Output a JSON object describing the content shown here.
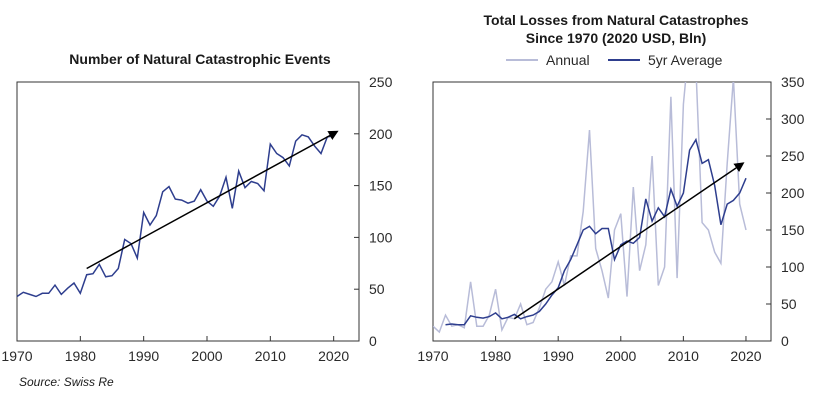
{
  "source": "Source: Swiss Re",
  "colors": {
    "avg": "#2e3e8e",
    "annual": "#b8bcd8",
    "trend": "#000000",
    "axis": "#333333"
  },
  "chart_data": [
    {
      "type": "line",
      "title": "Number of Natural Catastrophic Events",
      "xlim": [
        1970,
        2024
      ],
      "ylim": [
        0,
        250
      ],
      "xticks": [
        1970,
        1980,
        1990,
        2000,
        2010,
        2020
      ],
      "yticks": [
        0,
        50,
        100,
        150,
        200,
        250
      ],
      "series": [
        {
          "x": [
            1970,
            1971,
            1972,
            1973,
            1974,
            1975,
            1976,
            1977,
            1978,
            1979,
            1980,
            1981,
            1982,
            1983,
            1984,
            1985,
            1986,
            1987,
            1988,
            1989,
            1990,
            1991,
            1992,
            1993,
            1994,
            1995,
            1996,
            1997,
            1998,
            1999,
            2000,
            2001,
            2002,
            2003,
            2004,
            2005,
            2006,
            2007,
            2008,
            2009,
            2010,
            2011,
            2012,
            2013,
            2014,
            2015,
            2016,
            2017,
            2018,
            2019,
            2020
          ],
          "values": [
            43,
            47,
            45,
            43,
            46,
            46,
            54,
            45,
            51,
            56,
            46,
            64,
            65,
            74,
            62,
            63,
            70,
            98,
            94,
            80,
            124,
            112,
            121,
            144,
            149,
            137,
            136,
            133,
            135,
            146,
            135,
            130,
            140,
            158,
            128,
            164,
            148,
            154,
            152,
            145,
            190,
            181,
            177,
            169,
            193,
            199,
            197,
            188,
            181,
            197,
            198
          ]
        }
      ],
      "trend": {
        "x1": 1981,
        "y1": 70,
        "x2": 2020.5,
        "y2": 202
      }
    },
    {
      "type": "line",
      "title": [
        "Total Losses from Natural Catastrophes",
        "Since 1970 (2020 USD, Bln)"
      ],
      "xlim": [
        1970,
        2024
      ],
      "ylim": [
        0,
        350
      ],
      "xticks": [
        1970,
        1980,
        1990,
        2000,
        2010,
        2020
      ],
      "yticks": [
        0,
        50,
        100,
        150,
        200,
        250,
        300,
        350
      ],
      "series": [
        {
          "name": "Annual",
          "x": [
            1970,
            1971,
            1972,
            1973,
            1974,
            1975,
            1976,
            1977,
            1978,
            1979,
            1980,
            1981,
            1982,
            1983,
            1984,
            1985,
            1986,
            1987,
            1988,
            1989,
            1990,
            1991,
            1992,
            1993,
            1994,
            1995,
            1996,
            1997,
            1998,
            1999,
            2000,
            2001,
            2002,
            2003,
            2004,
            2005,
            2006,
            2007,
            2008,
            2009,
            2010,
            2011,
            2012,
            2013,
            2014,
            2015,
            2016,
            2017,
            2018,
            2019,
            2020
          ],
          "values": [
            20,
            12,
            35,
            20,
            22,
            18,
            80,
            20,
            20,
            35,
            70,
            15,
            32,
            30,
            50,
            22,
            25,
            45,
            70,
            80,
            107,
            75,
            115,
            115,
            175,
            285,
            125,
            95,
            58,
            150,
            172,
            60,
            208,
            95,
            130,
            250,
            75,
            100,
            330,
            85,
            320,
            410,
            370,
            160,
            150,
            120,
            105,
            240,
            355,
            185,
            150
          ]
        },
        {
          "name": "5yr Average",
          "x": [
            1972,
            1973,
            1974,
            1975,
            1976,
            1977,
            1978,
            1979,
            1980,
            1981,
            1982,
            1983,
            1984,
            1985,
            1986,
            1987,
            1988,
            1989,
            1990,
            1991,
            1992,
            1993,
            1994,
            1995,
            1996,
            1997,
            1998,
            1999,
            2000,
            2001,
            2002,
            2003,
            2004,
            2005,
            2006,
            2007,
            2008,
            2009,
            2010,
            2011,
            2012,
            2013,
            2014,
            2015,
            2016,
            2017,
            2018,
            2019,
            2020
          ],
          "values": [
            22,
            23,
            22,
            22,
            34,
            32,
            31,
            33,
            38,
            30,
            32,
            36,
            30,
            33,
            35,
            40,
            50,
            62,
            72,
            95,
            110,
            130,
            150,
            155,
            145,
            152,
            152,
            110,
            130,
            135,
            132,
            140,
            192,
            162,
            180,
            168,
            205,
            182,
            200,
            258,
            272,
            240,
            245,
            210,
            157,
            185,
            190,
            200,
            220
          ]
        }
      ],
      "trend": {
        "x1": 1983,
        "y1": 30,
        "x2": 2019.5,
        "y2": 240
      },
      "legend": [
        "Annual",
        "5yr Average"
      ],
      "legend_position": "top"
    }
  ]
}
